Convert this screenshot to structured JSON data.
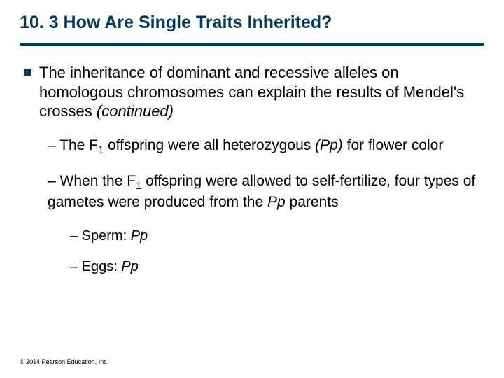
{
  "title": "10. 3 How Are Single Traits Inherited?",
  "main_point_pre": "The inheritance of dominant and recessive alleles on homologous chromosomes can explain the results of Mendel's crosses ",
  "main_point_italic": "(continued)",
  "sub1a_pre": "– The F",
  "sub1a_sub": "1",
  "sub1a_mid": " offspring were all heterozygous ",
  "sub1a_italic": "(Pp)",
  "sub1a_post": " for flower color",
  "sub1b_pre": "– When the F",
  "sub1b_sub": "1",
  "sub1b_mid": " offspring were allowed to self-fertilize, four types of gametes were produced from the ",
  "sub1b_italic": "Pp",
  "sub1b_post": " parents",
  "sub2a_pre": "– Sperm: ",
  "sub2a_italic": "Pp",
  "sub2b_pre": "– Eggs:   ",
  "sub2b_italic": "Pp",
  "copyright": "© 2014 Pearson Education, Inc.",
  "colors": {
    "title_color": "#003a5d",
    "divider_color": "#003a5d",
    "bullet_color": "#003a5d",
    "text_color": "#000000",
    "background": "#ffffff"
  }
}
